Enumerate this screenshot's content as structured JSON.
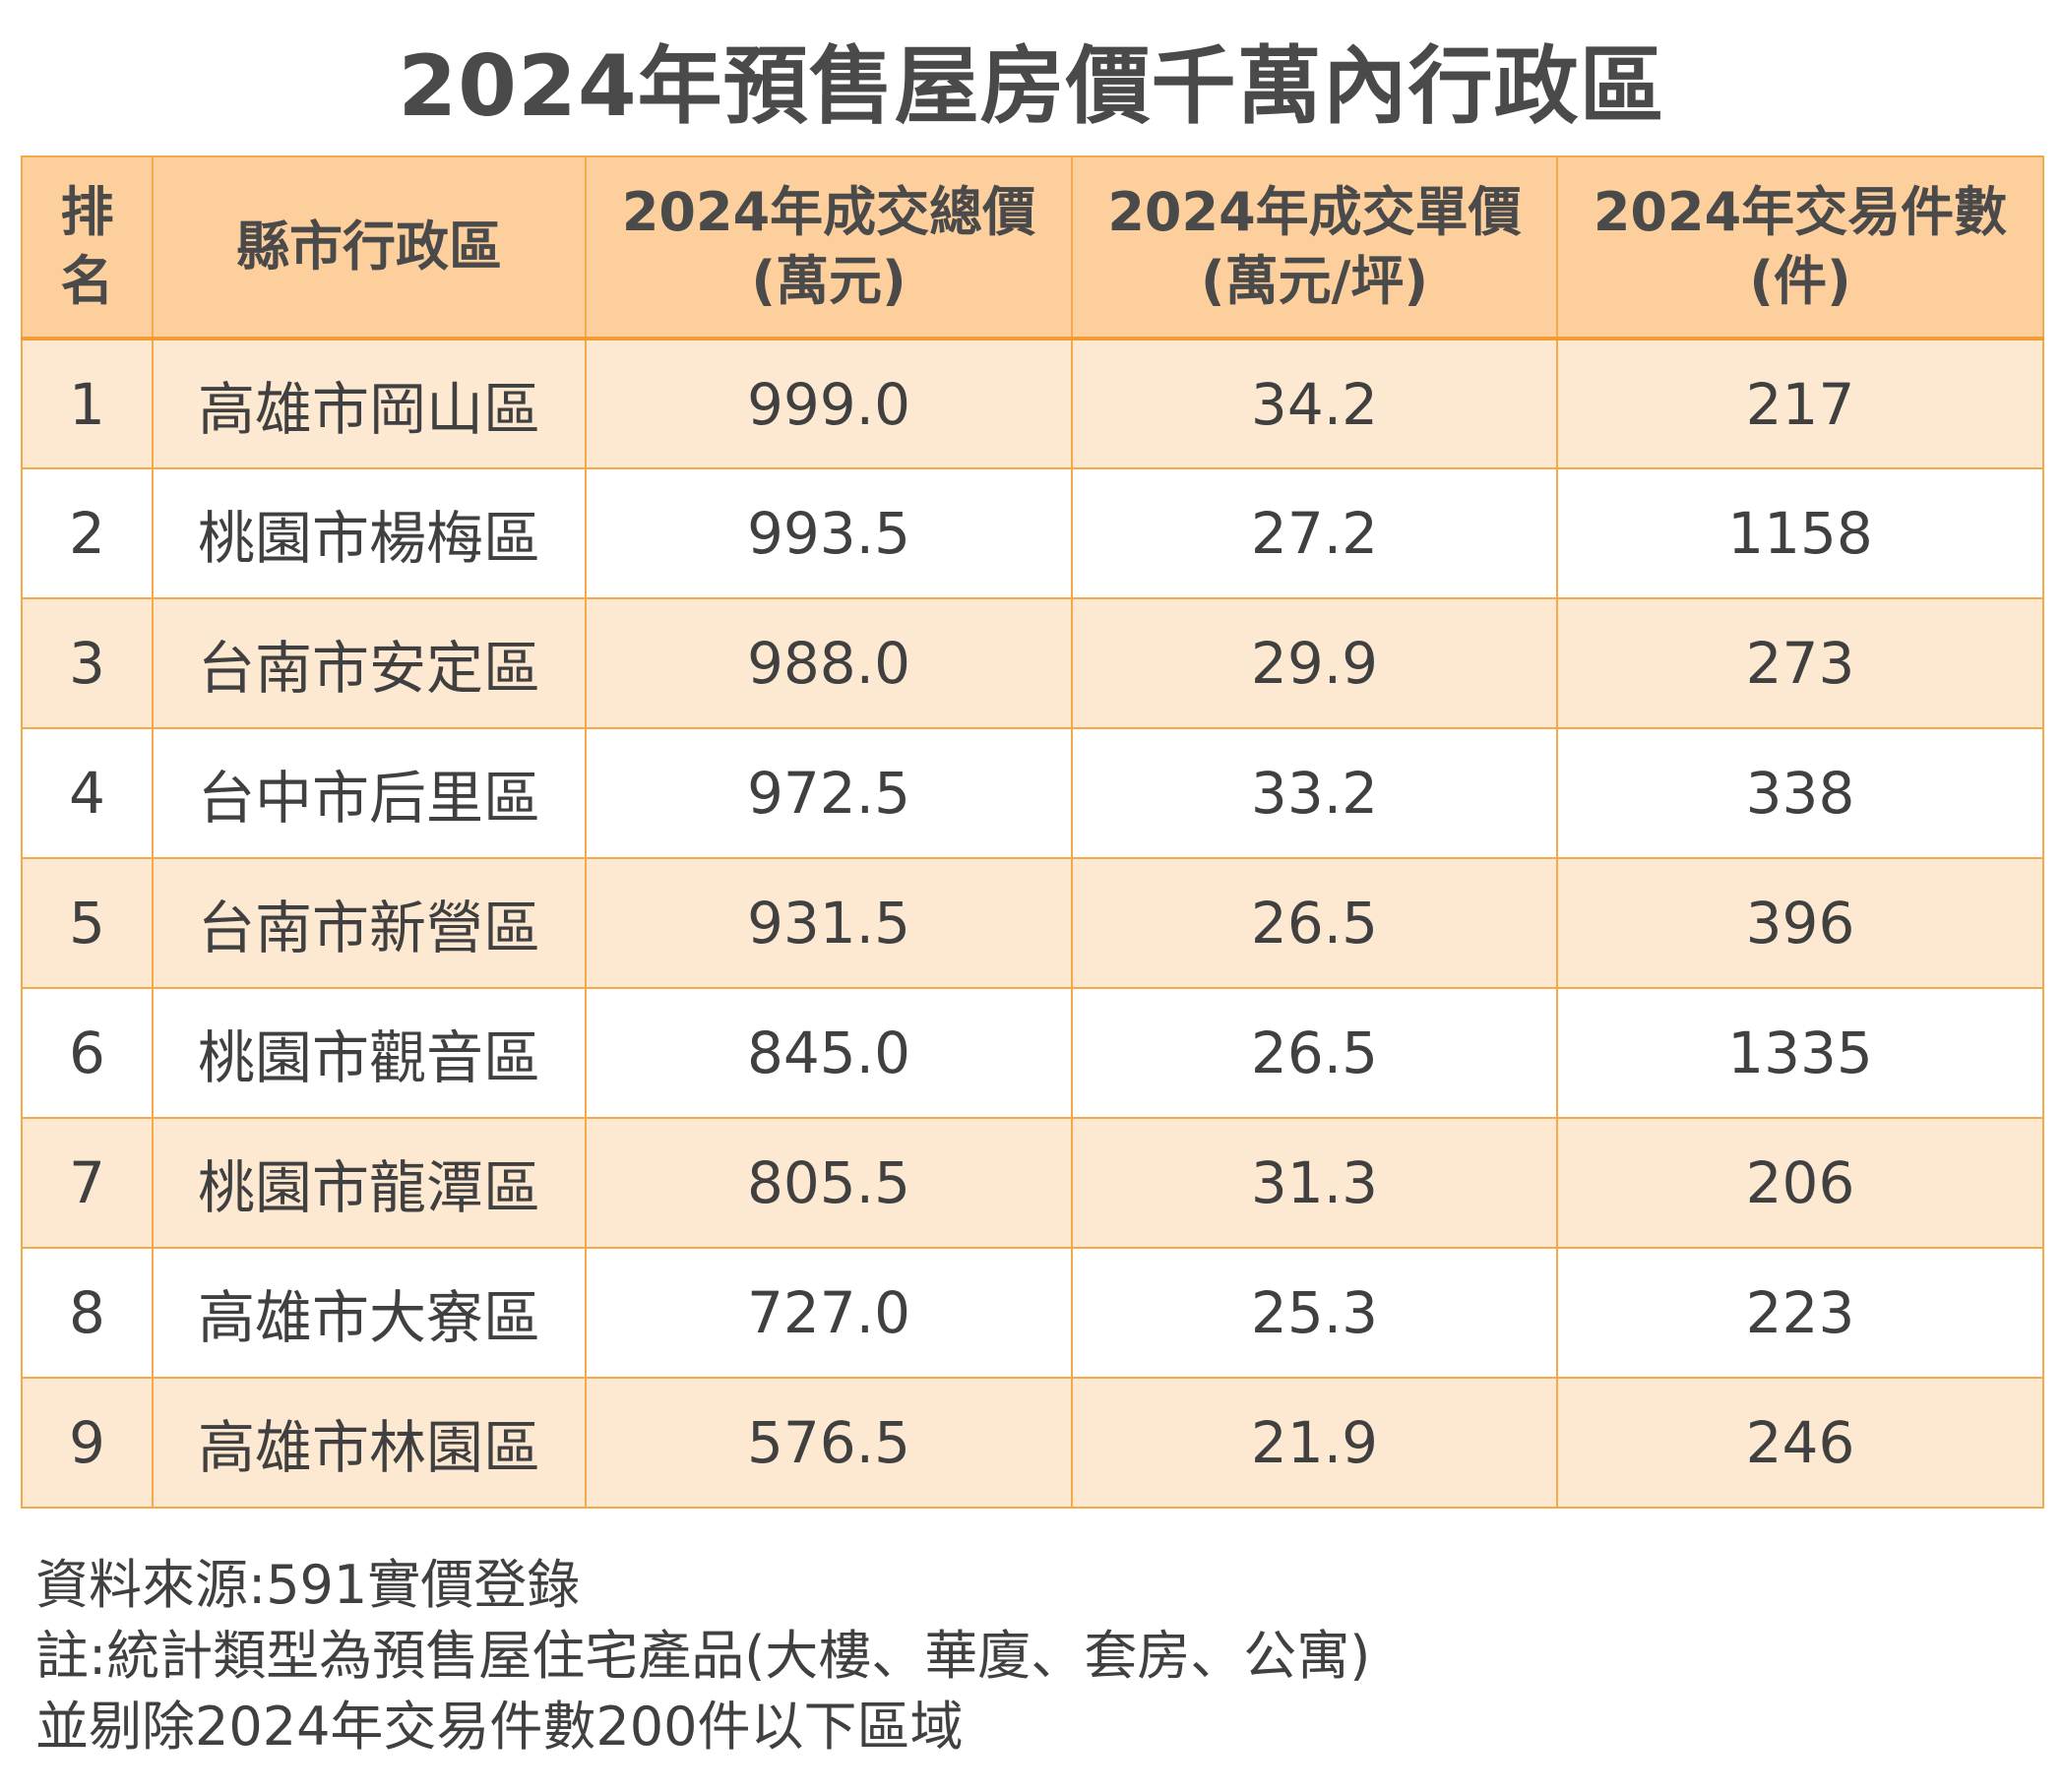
{
  "title": "2024年預售屋房價千萬內行政區",
  "table": {
    "headers": {
      "rank": [
        "排",
        "名"
      ],
      "district": "縣市行政區",
      "total_price": [
        "2024年成交總價",
        "(萬元)"
      ],
      "unit_price": [
        "2024年成交單價",
        "(萬元/坪)"
      ],
      "count": [
        "2024年交易件數",
        "(件)"
      ]
    },
    "rows": [
      {
        "rank": "1",
        "district": "高雄市岡山區",
        "total_price": "999.0",
        "unit_price": "34.2",
        "count": "217"
      },
      {
        "rank": "2",
        "district": "桃園市楊梅區",
        "total_price": "993.5",
        "unit_price": "27.2",
        "count": "1158"
      },
      {
        "rank": "3",
        "district": "台南市安定區",
        "total_price": "988.0",
        "unit_price": "29.9",
        "count": "273"
      },
      {
        "rank": "4",
        "district": "台中市后里區",
        "total_price": "972.5",
        "unit_price": "33.2",
        "count": "338"
      },
      {
        "rank": "5",
        "district": "台南市新營區",
        "total_price": "931.5",
        "unit_price": "26.5",
        "count": "396"
      },
      {
        "rank": "6",
        "district": "桃園市觀音區",
        "total_price": "845.0",
        "unit_price": "26.5",
        "count": "1335"
      },
      {
        "rank": "7",
        "district": "桃園市龍潭區",
        "total_price": "805.5",
        "unit_price": "31.3",
        "count": "206"
      },
      {
        "rank": "8",
        "district": "高雄市大寮區",
        "total_price": "727.0",
        "unit_price": "25.3",
        "count": "223"
      },
      {
        "rank": "9",
        "district": "高雄市林園區",
        "total_price": "576.5",
        "unit_price": "21.9",
        "count": "246"
      }
    ]
  },
  "notes": [
    "資料來源:591實價登錄",
    "註:統計類型為預售屋住宅產品(大樓、華廈、套房、公寓)",
    "並剔除2024年交易件數200件以下區域"
  ],
  "colors": {
    "header_bg": "#fccf9c",
    "odd_row_bg": "#fde9d2",
    "even_row_bg": "#ffffff",
    "border": "#f4a94a",
    "text": "#404040"
  }
}
